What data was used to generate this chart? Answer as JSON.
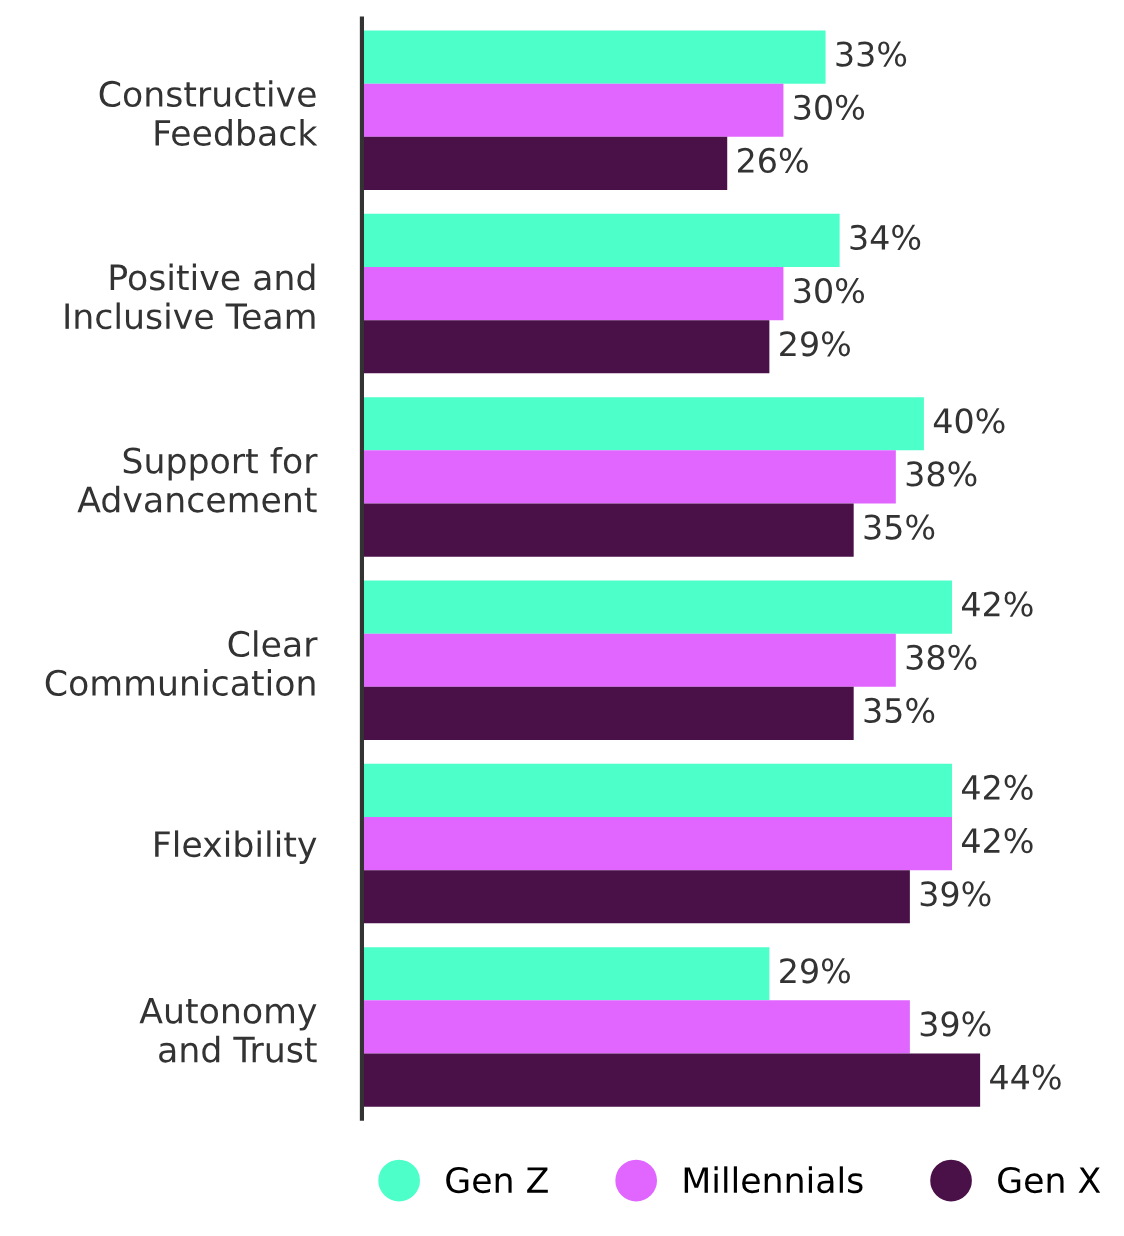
{
  "chart_data": {
    "type": "bar",
    "orientation": "horizontal",
    "categories": [
      "Constructive\nFeedback",
      "Positive and\nInclusive Team",
      "Support for\nAdvancement",
      "Clear\nCommunication",
      "Flexibility",
      "Autonomy\nand Trust"
    ],
    "series": [
      {
        "name": "Gen Z",
        "color": "#4dffc8",
        "values": [
          33,
          34,
          40,
          42,
          42,
          29
        ],
        "value_labels": [
          "33%",
          "34%",
          "40%",
          "42%",
          "42%",
          "29%"
        ]
      },
      {
        "name": "Millennials",
        "color": "#e066ff",
        "values": [
          30,
          30,
          38,
          38,
          42,
          39
        ],
        "value_labels": [
          "30%",
          "30%",
          "38%",
          "38%",
          "42%",
          "39%"
        ]
      },
      {
        "name": "Gen X",
        "color": "#4a1048",
        "values": [
          26,
          29,
          35,
          35,
          39,
          44
        ],
        "value_labels": [
          "26%",
          "29%",
          "35%",
          "35%",
          "39%",
          "44%"
        ]
      }
    ],
    "legend": "bottom",
    "grid": false,
    "marker": "circle"
  }
}
